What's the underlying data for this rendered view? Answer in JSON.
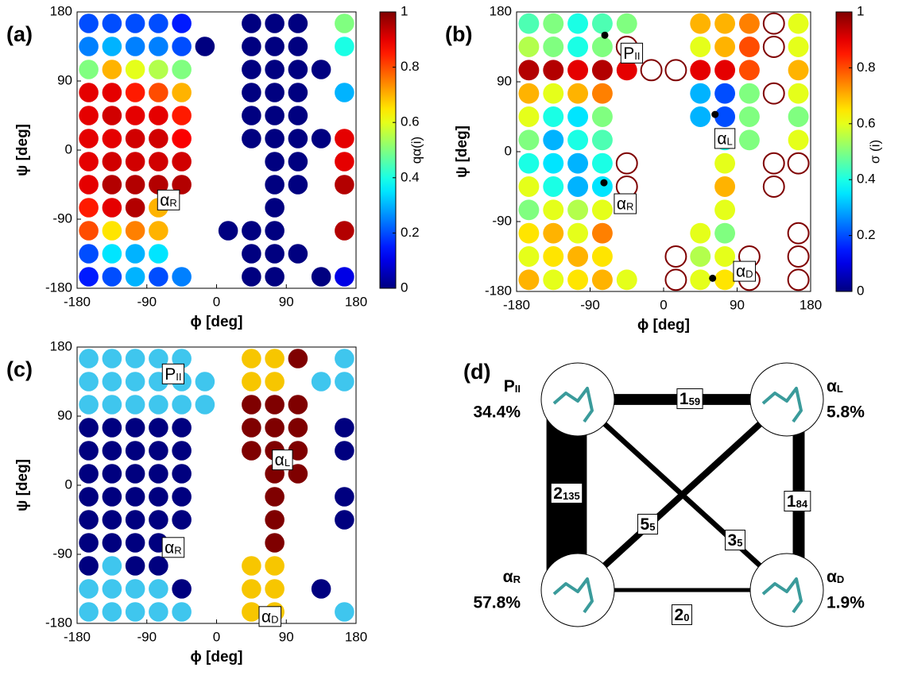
{
  "chart_data": [
    {
      "type": "dotgrid",
      "panel": "(a)",
      "xlabel": "ϕ [deg]",
      "ylabel": "ψ [deg]",
      "colorbar_label": "qα(i)",
      "colormap": "jet",
      "clim": [
        0,
        1
      ],
      "cticks": [
        0,
        0.2,
        0.4,
        0.6,
        0.8,
        1
      ],
      "xlim": [
        -180,
        180
      ],
      "ylim": [
        -180,
        180
      ],
      "xticks": [
        -180,
        -90,
        0,
        90,
        180
      ],
      "yticks": [
        -180,
        -90,
        0,
        90,
        180
      ],
      "x": [
        -165,
        -135,
        -105,
        -75,
        -45,
        -15,
        15,
        45,
        75,
        105,
        135,
        165
      ],
      "y": [
        165,
        135,
        105,
        75,
        45,
        15,
        -15,
        -45,
        -75,
        -105,
        -135,
        -165
      ],
      "values": [
        [
          0.2,
          0.2,
          0.2,
          0.2,
          0.15,
          null,
          null,
          0,
          0,
          0,
          null,
          0.5
        ],
        [
          0.25,
          0.3,
          0.25,
          0.25,
          0.2,
          0,
          null,
          0,
          0,
          0,
          null,
          0.4
        ],
        [
          0.5,
          0.7,
          0.6,
          0.55,
          0.5,
          null,
          null,
          0,
          0,
          0,
          0,
          null
        ],
        [
          0.9,
          0.9,
          0.85,
          0.8,
          0.7,
          null,
          null,
          0,
          0,
          0,
          null,
          0.3
        ],
        [
          0.9,
          0.92,
          0.9,
          0.9,
          0.85,
          null,
          null,
          0,
          0,
          0,
          null,
          null
        ],
        [
          0.9,
          0.9,
          0.92,
          0.92,
          0.88,
          null,
          null,
          0,
          0,
          0,
          0,
          0.9
        ],
        [
          0.9,
          0.92,
          0.92,
          0.92,
          0.92,
          null,
          null,
          null,
          0,
          0,
          null,
          0.9
        ],
        [
          0.9,
          0.95,
          0.95,
          0.95,
          0.95,
          null,
          null,
          null,
          0,
          0,
          null,
          0.95
        ],
        [
          0.85,
          0.9,
          0.95,
          0.7,
          null,
          null,
          null,
          null,
          0,
          null,
          null,
          null
        ],
        [
          0.8,
          0.65,
          0.75,
          0.7,
          null,
          null,
          0,
          0,
          0,
          null,
          null,
          0.95
        ],
        [
          0.2,
          0.35,
          0.3,
          0.35,
          null,
          null,
          null,
          0,
          0,
          0,
          null,
          null
        ],
        [
          0.15,
          0.2,
          0.3,
          0.2,
          0.25,
          null,
          null,
          0,
          0,
          null,
          0,
          0.1
        ]
      ],
      "annotations": [
        "αR"
      ]
    },
    {
      "type": "dotgrid",
      "panel": "(b)",
      "xlabel": "ϕ [deg]",
      "ylabel": "ψ [deg]",
      "colorbar_label": "σ (i)",
      "colormap": "jet",
      "clim": [
        0,
        1
      ],
      "cticks": [
        0,
        0.2,
        0.4,
        0.6,
        0.8,
        1
      ],
      "xlim": [
        -180,
        180
      ],
      "ylim": [
        -180,
        180
      ],
      "xticks": [
        -180,
        -90,
        0,
        90,
        180
      ],
      "yticks": [
        -180,
        -90,
        0,
        90,
        180
      ],
      "x": [
        -165,
        -135,
        -105,
        -75,
        -45,
        -15,
        15,
        45,
        75,
        105,
        135,
        165
      ],
      "y": [
        165,
        135,
        105,
        75,
        45,
        15,
        -15,
        -45,
        -75,
        -105,
        -135,
        -165
      ],
      "values": [
        [
          0.45,
          0.5,
          0.4,
          0.45,
          0.5,
          null,
          null,
          0.7,
          0.7,
          0.75,
          1,
          0.6
        ],
        [
          0.55,
          0.5,
          0.4,
          0.5,
          1,
          null,
          null,
          0.6,
          0.7,
          0.8,
          1,
          0.6
        ],
        [
          0.95,
          0.95,
          0.9,
          0.95,
          0.9,
          1,
          1,
          0.9,
          0.9,
          0.8,
          null,
          0.7
        ],
        [
          0.7,
          0.6,
          0.7,
          0.75,
          null,
          null,
          null,
          0.3,
          0.2,
          0.5,
          1,
          0.6
        ],
        [
          0.6,
          0.4,
          0.35,
          0.5,
          null,
          null,
          null,
          0.3,
          0.2,
          0.5,
          null,
          0.5
        ],
        [
          0.5,
          0.3,
          0.4,
          0.45,
          null,
          null,
          null,
          null,
          0.4,
          0.5,
          null,
          0.6
        ],
        [
          0.4,
          0.35,
          0.3,
          0.4,
          1,
          null,
          null,
          null,
          0.6,
          null,
          1,
          1
        ],
        [
          0.6,
          0.4,
          0.3,
          0.35,
          1,
          null,
          null,
          null,
          0.7,
          null,
          1,
          null
        ],
        [
          0.5,
          0.6,
          0.55,
          0.6,
          null,
          null,
          null,
          null,
          0.6,
          null,
          null,
          null
        ],
        [
          0.65,
          0.7,
          0.6,
          0.75,
          null,
          null,
          null,
          0.6,
          0.5,
          null,
          null,
          1
        ],
        [
          0.6,
          0.65,
          0.7,
          0.65,
          null,
          null,
          1,
          0.55,
          0.6,
          1,
          null,
          1
        ],
        [
          0.7,
          0.6,
          0.65,
          0.7,
          0.6,
          null,
          1,
          0.6,
          0.65,
          1,
          null,
          1
        ]
      ],
      "centers": {
        "x": [
          -72,
          63,
          -73,
          60
        ],
        "y": [
          150,
          48,
          -40,
          -163
        ]
      },
      "annotations": [
        "PII",
        "αL",
        "αR",
        "αD"
      ]
    },
    {
      "type": "dotgrid",
      "panel": "(c)",
      "xlabel": "ϕ [deg]",
      "ylabel": "ψ [deg]",
      "colors": [
        "#3fc6ee",
        "#7f0000",
        "#00007f",
        "#f7c600"
      ],
      "xlim": [
        -180,
        180
      ],
      "ylim": [
        -180,
        180
      ],
      "xticks": [
        -180,
        -90,
        0,
        90,
        180
      ],
      "yticks": [
        -180,
        -90,
        0,
        90,
        180
      ],
      "x": [
        -165,
        -135,
        -105,
        -75,
        -45,
        -15,
        15,
        45,
        75,
        105,
        135,
        165
      ],
      "y": [
        165,
        135,
        105,
        75,
        45,
        15,
        -15,
        -45,
        -75,
        -105,
        -135,
        -165
      ],
      "values": [
        [
          0,
          0,
          0,
          0,
          0,
          null,
          null,
          3,
          3,
          1,
          null,
          0
        ],
        [
          0,
          0,
          0,
          0,
          0,
          0,
          null,
          3,
          3,
          null,
          0,
          0
        ],
        [
          0,
          0,
          0,
          0,
          0,
          0,
          null,
          1,
          1,
          1,
          null,
          null
        ],
        [
          2,
          2,
          2,
          2,
          2,
          null,
          null,
          1,
          1,
          1,
          null,
          2
        ],
        [
          2,
          2,
          2,
          2,
          2,
          null,
          null,
          1,
          1,
          1,
          null,
          2
        ],
        [
          2,
          2,
          2,
          2,
          2,
          null,
          null,
          null,
          1,
          1,
          null,
          null
        ],
        [
          2,
          2,
          2,
          2,
          2,
          null,
          null,
          null,
          1,
          null,
          null,
          2
        ],
        [
          2,
          2,
          2,
          2,
          2,
          null,
          null,
          null,
          1,
          null,
          null,
          2
        ],
        [
          2,
          2,
          2,
          2,
          null,
          null,
          null,
          null,
          1,
          null,
          null,
          null
        ],
        [
          2,
          0,
          2,
          2,
          null,
          null,
          null,
          3,
          3,
          null,
          null,
          null
        ],
        [
          0,
          0,
          0,
          0,
          2,
          null,
          null,
          3,
          3,
          null,
          2,
          null
        ],
        [
          0,
          0,
          0,
          0,
          0,
          null,
          null,
          3,
          3,
          null,
          null,
          0
        ]
      ],
      "annotations": [
        "PII",
        "αL",
        "αR",
        "αD"
      ]
    },
    {
      "type": "network",
      "panel": "(d)",
      "nodes": {
        "labels": [
          "PII",
          "αL",
          "αR",
          "αD"
        ],
        "values": [
          34.4,
          5.8,
          57.8,
          1.9
        ],
        "value_labels": [
          "34.4%",
          "5.8%",
          "57.8%",
          "1.9%"
        ]
      },
      "edges": {
        "source": [
          0,
          0,
          1,
          2,
          1,
          0
        ],
        "target": [
          1,
          2,
          3,
          3,
          2,
          3
        ],
        "values": [
          159,
          2135,
          184,
          20,
          55,
          35
        ]
      }
    }
  ]
}
